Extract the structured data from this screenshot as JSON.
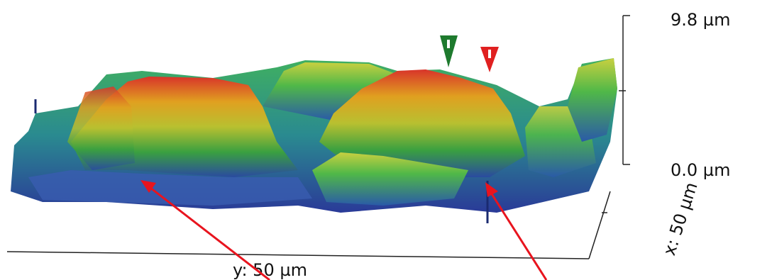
{
  "labels": {
    "z_top": "9.8 µm",
    "z_bottom": "0.0 µm",
    "y_axis": "y: 50 µm",
    "x_axis": "x: 50 µm"
  }
}
